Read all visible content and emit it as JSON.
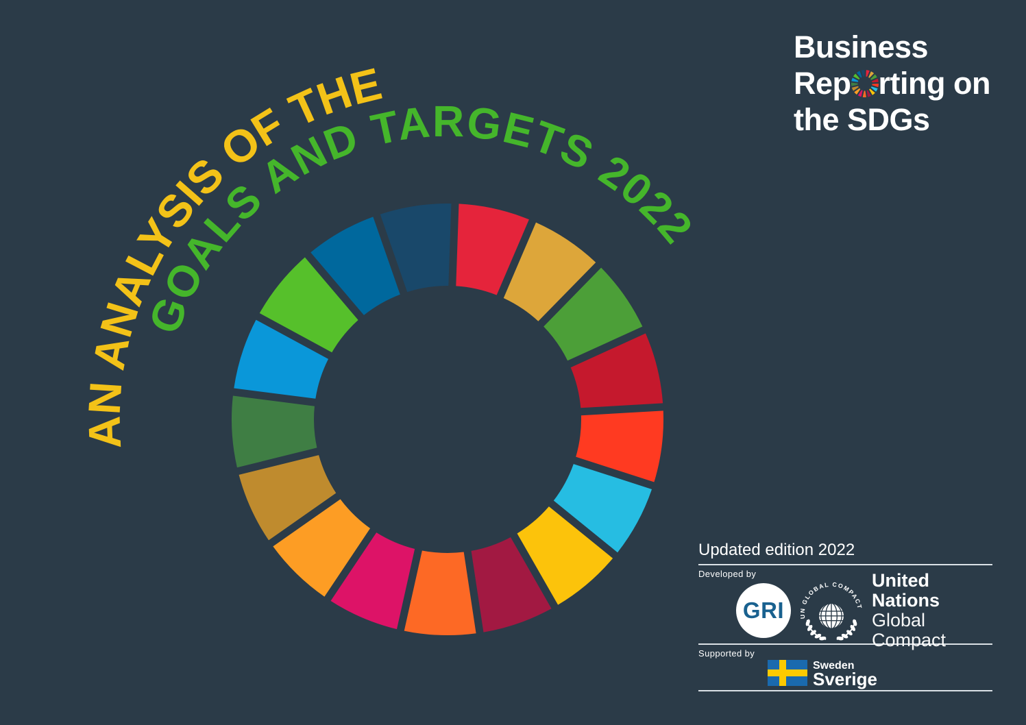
{
  "background": "#2b3b48",
  "title": {
    "arc_line_1": "AN ANALYSIS OF THE",
    "arc_line_1_color": "#F3C218",
    "arc_line_2": "GOALS AND TARGETS 2022",
    "arc_line_2_color": "#45B62B"
  },
  "brand_logo": {
    "line1": "Business",
    "line2_before_wheel": "Rep",
    "line2_after_wheel": "rting on",
    "line3": "the SDGs"
  },
  "wheel": {
    "colors": [
      "#E5243B",
      "#DDA63A",
      "#4C9F38",
      "#C5192D",
      "#FF3A21",
      "#26BDE2",
      "#FCC30B",
      "#A21942",
      "#FD6925",
      "#DD1367",
      "#FD9D24",
      "#BF8B2E",
      "#3F7E44",
      "#0A97D9",
      "#56C02B",
      "#00689D",
      "#19486A"
    ]
  },
  "credits": {
    "updated_edition": "Updated edition 2022",
    "developed_by_label": "Developed by",
    "supported_by_label": "Supported by",
    "gri_label": "GRI",
    "gri_text_color": "#19618F",
    "ungc_seal_text": "UN GLOBAL COMPACT",
    "ungc_name_line1": "United Nations",
    "ungc_name_line2": "Global Compact",
    "sweden_line1": "Sweden",
    "sweden_line2": "Sverige",
    "sweden_flag_blue": "#1A6AAE",
    "sweden_flag_yellow": "#FDCA00"
  }
}
